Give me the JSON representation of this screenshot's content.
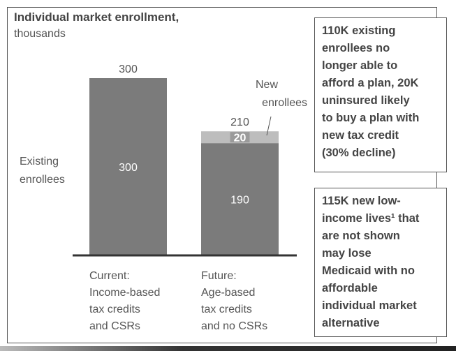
{
  "chart_data": {
    "type": "bar",
    "stacked": true,
    "title": "Individual market enrollment,",
    "subtitle": "thousands",
    "categories": [
      [
        "Current:",
        "Income-based",
        "tax credits",
        "and CSRs"
      ],
      [
        "Future:",
        "Age-based",
        "tax credits",
        "and no CSRs"
      ]
    ],
    "series": [
      {
        "name": "Existing enrollees",
        "values": [
          300,
          190
        ],
        "color": "#7b7b7b"
      },
      {
        "name": "New enrollees",
        "values": [
          0,
          20
        ],
        "color": "#bdbdbd"
      }
    ],
    "totals": [
      300,
      210
    ],
    "ylim": [
      0,
      300
    ],
    "grid": false,
    "series_labels": {
      "existing": [
        "Existing",
        "enrollees"
      ],
      "new": [
        "New",
        "enrollees"
      ]
    }
  },
  "notes": [
    [
      "110K existing",
      "enrollees no",
      "longer able to",
      "afford a plan, 20K",
      "uninsured likely",
      "to buy a plan with",
      "new tax credit",
      "(30% decline)"
    ],
    [
      "115K new low-",
      "income lives¹ that",
      "are not shown",
      "may lose",
      "Medicaid with no",
      "affordable",
      "individual market",
      "alternative"
    ]
  ]
}
